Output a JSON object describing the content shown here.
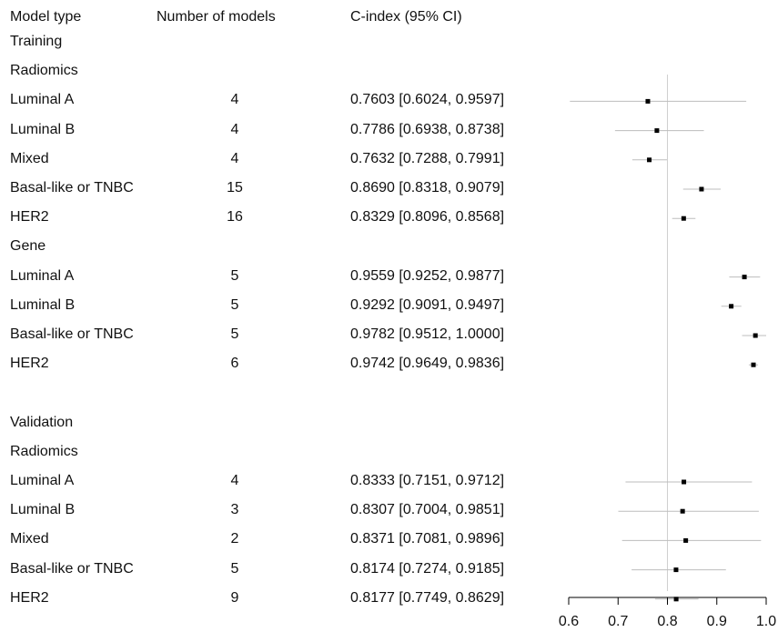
{
  "headers": {
    "model_type": "Model type",
    "n_models": "Number of models",
    "ci": "C-index (95% CI)"
  },
  "rows": [
    {
      "label": "Training",
      "kind": "section"
    },
    {
      "label": "Radiomics",
      "kind": "group"
    },
    {
      "label": "Luminal A",
      "n": "4",
      "ci": "0.7603 [0.6024, 0.9597]"
    },
    {
      "label": "Luminal B",
      "n": "4",
      "ci": "0.7786 [0.6938, 0.8738]"
    },
    {
      "label": "Mixed",
      "n": "4",
      "ci": "0.7632 [0.7288, 0.7991]"
    },
    {
      "label": "Basal-like or TNBC",
      "n": "15",
      "ci": "0.8690 [0.8318, 0.9079]"
    },
    {
      "label": "HER2",
      "n": "16",
      "ci": "0.8329 [0.8096, 0.8568]"
    },
    {
      "label": "Gene",
      "kind": "group"
    },
    {
      "label": "Luminal A",
      "n": "5",
      "ci": "0.9559 [0.9252, 0.9877]"
    },
    {
      "label": "Luminal B",
      "n": "5",
      "ci": "0.9292 [0.9091, 0.9497]"
    },
    {
      "label": "Basal-like or TNBC",
      "n": "5",
      "ci": "0.9782 [0.9512, 1.0000]"
    },
    {
      "label": "HER2",
      "n": "6",
      "ci": "0.9742 [0.9649, 0.9836]"
    },
    {
      "label": "",
      "kind": "blank"
    },
    {
      "label": "Validation",
      "kind": "section"
    },
    {
      "label": "Radiomics",
      "kind": "group"
    },
    {
      "label": "Luminal A",
      "n": "4",
      "ci": "0.8333 [0.7151, 0.9712]"
    },
    {
      "label": "Luminal B",
      "n": "3",
      "ci": "0.8307 [0.7004, 0.9851]"
    },
    {
      "label": "Mixed",
      "n": "2",
      "ci": "0.8371 [0.7081, 0.9896]"
    },
    {
      "label": "Basal-like or TNBC",
      "n": "5",
      "ci": "0.8174 [0.7274, 0.9185]"
    },
    {
      "label": "HER2",
      "n": "9",
      "ci": "0.8177 [0.7749, 0.8629]"
    }
  ],
  "chart_data": {
    "type": "forest",
    "xlim": [
      0.6,
      1.0
    ],
    "xticks": [
      "0.6",
      "0.7",
      "0.8",
      "0.9",
      "1.0"
    ],
    "reference_line": 0.8,
    "series": [
      {
        "group": "Training Radiomics",
        "label": "Luminal A",
        "estimate": 0.7603,
        "lower": 0.6024,
        "upper": 0.9597
      },
      {
        "group": "Training Radiomics",
        "label": "Luminal B",
        "estimate": 0.7786,
        "lower": 0.6938,
        "upper": 0.8738
      },
      {
        "group": "Training Radiomics",
        "label": "Mixed",
        "estimate": 0.7632,
        "lower": 0.7288,
        "upper": 0.7991
      },
      {
        "group": "Training Radiomics",
        "label": "Basal-like or TNBC",
        "estimate": 0.869,
        "lower": 0.8318,
        "upper": 0.9079
      },
      {
        "group": "Training Radiomics",
        "label": "HER2",
        "estimate": 0.8329,
        "lower": 0.8096,
        "upper": 0.8568
      },
      {
        "group": "Training Gene",
        "label": "Luminal A",
        "estimate": 0.9559,
        "lower": 0.9252,
        "upper": 0.9877
      },
      {
        "group": "Training Gene",
        "label": "Luminal B",
        "estimate": 0.9292,
        "lower": 0.9091,
        "upper": 0.9497
      },
      {
        "group": "Training Gene",
        "label": "Basal-like or TNBC",
        "estimate": 0.9782,
        "lower": 0.9512,
        "upper": 1.0
      },
      {
        "group": "Training Gene",
        "label": "HER2",
        "estimate": 0.9742,
        "lower": 0.9649,
        "upper": 0.9836
      },
      {
        "group": "Validation Radiomics",
        "label": "Luminal A",
        "estimate": 0.8333,
        "lower": 0.7151,
        "upper": 0.9712
      },
      {
        "group": "Validation Radiomics",
        "label": "Luminal B",
        "estimate": 0.8307,
        "lower": 0.7004,
        "upper": 0.9851
      },
      {
        "group": "Validation Radiomics",
        "label": "Mixed",
        "estimate": 0.8371,
        "lower": 0.7081,
        "upper": 0.9896
      },
      {
        "group": "Validation Radiomics",
        "label": "Basal-like or TNBC",
        "estimate": 0.8174,
        "lower": 0.7274,
        "upper": 0.9185
      },
      {
        "group": "Validation Radiomics",
        "label": "HER2",
        "estimate": 0.8177,
        "lower": 0.7749,
        "upper": 0.8629
      }
    ],
    "colors": {
      "point": "#000000",
      "ci_line": "#bdbdbd",
      "reference_line": "#d0d0d0",
      "axis": "#000000"
    }
  }
}
